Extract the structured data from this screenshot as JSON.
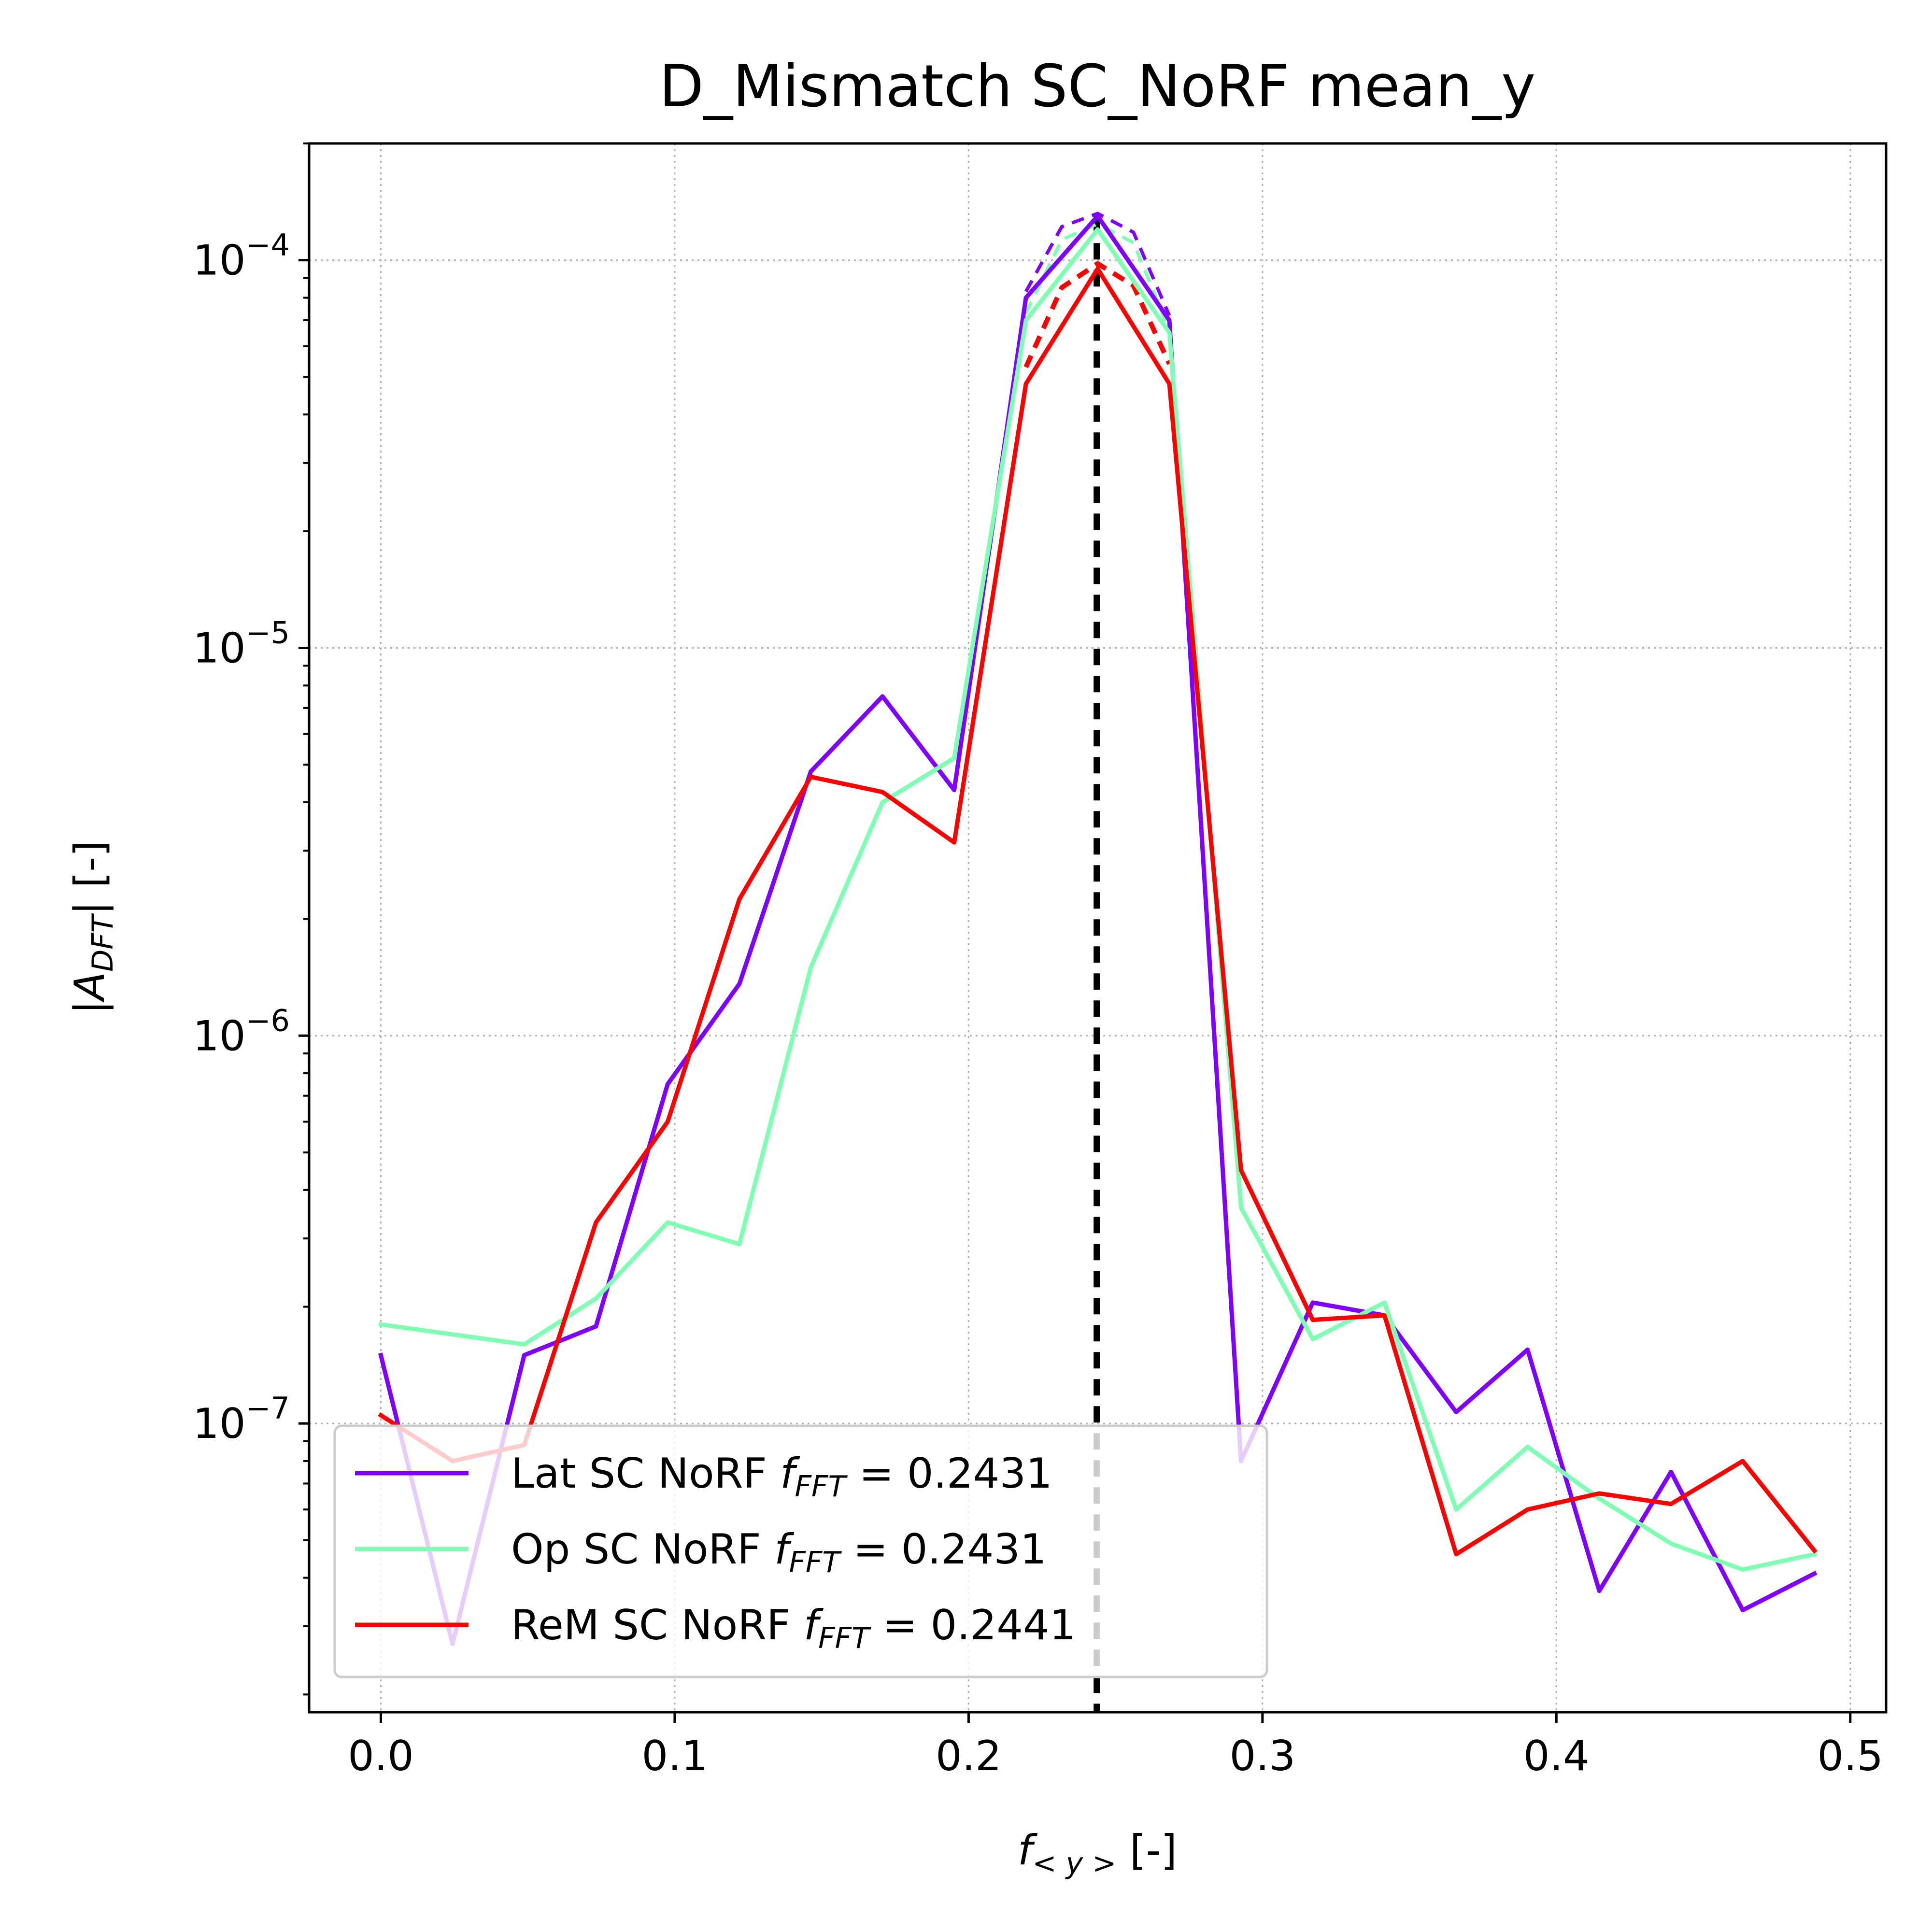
{
  "chart_data": {
    "type": "line",
    "title": "D_Mismatch SC_NoRF mean_y",
    "xlabel": {
      "base": "f",
      "sub": "< y >",
      "unit": " [-]"
    },
    "ylabel": {
      "open": "|",
      "base": "A",
      "sub": "DFT",
      "close": "| [-]"
    },
    "x_scale": "linear",
    "y_scale": "log",
    "xlim": [
      -0.0244,
      0.5122
    ],
    "ylim": [
      1.8e-08,
      0.0002
    ],
    "x_ticks": [
      0.0,
      0.1,
      0.2,
      0.3,
      0.4,
      0.5
    ],
    "x_tick_labels": [
      "0.0",
      "0.1",
      "0.2",
      "0.3",
      "0.4",
      "0.5"
    ],
    "y_ticks": [
      1e-07,
      1e-06,
      1e-05,
      0.0001
    ],
    "y_tick_labels": [
      {
        "base": "10",
        "exp": "−7"
      },
      {
        "base": "10",
        "exp": "−6"
      },
      {
        "base": "10",
        "exp": "−5"
      },
      {
        "base": "10",
        "exp": "−4"
      }
    ],
    "grid": true,
    "legend_position": "lower-left",
    "x": [
      0.0,
      0.0244,
      0.0488,
      0.0732,
      0.0976,
      0.122,
      0.1463,
      0.1707,
      0.1951,
      0.2195,
      0.2439,
      0.2683,
      0.2927,
      0.3171,
      0.3415,
      0.3659,
      0.3902,
      0.4146,
      0.439,
      0.4634,
      0.4878
    ],
    "series": [
      {
        "name": "Lat SC NoRF",
        "f_fft_label": "0.2431",
        "color": "#8000ff",
        "values": [
          1.5e-07,
          2.7e-08,
          1.5e-07,
          1.78e-07,
          7.5e-07,
          1.36e-06,
          4.8e-06,
          7.5e-06,
          4.3e-06,
          8e-05,
          0.00013,
          7e-05,
          8e-08,
          2.05e-07,
          1.9e-07,
          1.07e-07,
          1.55e-07,
          3.7e-08,
          7.5e-08,
          3.3e-08,
          4.1e-08
        ]
      },
      {
        "name": "Op SC NoRF",
        "f_fft_label": "0.2431",
        "color": "#80ffb4",
        "values": [
          1.8e-07,
          null,
          1.6e-07,
          2.1e-07,
          3.3e-07,
          2.9e-07,
          1.5e-06,
          4e-06,
          5.2e-06,
          7e-05,
          0.00012,
          6.5e-05,
          3.6e-07,
          1.65e-07,
          2.05e-07,
          6e-08,
          8.7e-08,
          6.4e-08,
          4.9e-08,
          4.2e-08,
          4.6e-08
        ]
      },
      {
        "name": "ReM SC NoRF",
        "f_fft_label": "0.2441",
        "color": "#ff0000",
        "values": [
          1.05e-07,
          8e-08,
          8.8e-08,
          3.3e-07,
          6e-07,
          2.25e-06,
          4.65e-06,
          4.25e-06,
          3.15e-06,
          4.8e-05,
          9.5e-05,
          4.8e-05,
          4.5e-07,
          1.85e-07,
          1.9e-07,
          4.6e-08,
          6e-08,
          6.6e-08,
          6.2e-08,
          8e-08,
          4.7e-08
        ]
      }
    ],
    "peak_fits": [
      {
        "series": "Lat SC NoRF",
        "color": "#8000ff",
        "x": [
          0.2195,
          0.2317,
          0.2439,
          0.2561,
          0.2683
        ],
        "values": [
          8.3e-05,
          0.000122,
          0.000132,
          0.000118,
          7.2e-05
        ]
      },
      {
        "series": "Op SC NoRF",
        "color": "#80ffb4",
        "x": [
          0.2195,
          0.2317,
          0.2439,
          0.2561,
          0.2683
        ],
        "values": [
          7.3e-05,
          0.000113,
          0.000124,
          0.000111,
          6.6e-05
        ]
      },
      {
        "series": "ReM SC NoRF",
        "color": "#ff0000",
        "x": [
          0.2195,
          0.2317,
          0.2439,
          0.2561,
          0.2683
        ],
        "values": [
          5.3e-05,
          8.5e-05,
          9.8e-05,
          8.6e-05,
          5.4e-05
        ]
      }
    ],
    "reference_line": {
      "x": 0.2436,
      "style": "dashed",
      "color": "#000000"
    },
    "legend_formula": {
      "base": "f",
      "sub": "FFT",
      "eq": " = ",
      "sep": " "
    }
  }
}
